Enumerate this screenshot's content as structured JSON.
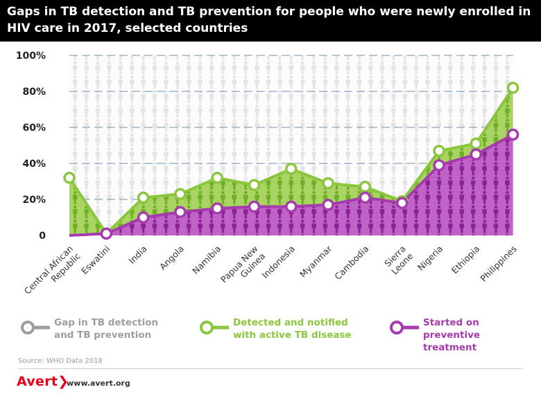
{
  "header": {
    "title": "Gaps in TB detection and TB prevention for people who were newly enrolled in HIV care in 2017, selected countries"
  },
  "chart_data": {
    "type": "area",
    "categories": [
      "Central African Republic",
      "Eswatini",
      "India",
      "Angola",
      "Namibia",
      "Papua New Guinea",
      "Indonesia",
      "Myanmar",
      "Cambodia",
      "Sierra Leone",
      "Nigeria",
      "Ethiopia",
      "Philippines"
    ],
    "series": [
      {
        "name": "Detected and notified with active TB disease",
        "values": [
          32,
          1,
          21,
          23,
          32,
          28,
          37,
          29,
          27,
          19,
          47,
          51,
          82
        ]
      },
      {
        "name": "Started on preventive treatment",
        "values": [
          0,
          1,
          10,
          13,
          15,
          16,
          16,
          17,
          21,
          18,
          39,
          45,
          56
        ]
      }
    ],
    "yticks": [
      "0",
      "20%",
      "40%",
      "60%",
      "80%",
      "100%"
    ],
    "ylim": [
      0,
      100
    ],
    "grid": true
  },
  "legend": {
    "items": [
      {
        "label": "Gap in TB detection and TB prevention",
        "color": "#9e9e9e"
      },
      {
        "label": "Detected and notified with active TB disease",
        "color": "#8cc63e"
      },
      {
        "label": "Started on preventive treatment",
        "color": "#a63bae"
      }
    ]
  },
  "colors": {
    "gap": "#9e9e9e",
    "detected": "#8cc63e",
    "preventive": "#a63bae",
    "header": "#000000"
  },
  "source": "Source: WHO Data 2018",
  "footer": {
    "logo": "Avert",
    "website": "www.avert.org"
  }
}
